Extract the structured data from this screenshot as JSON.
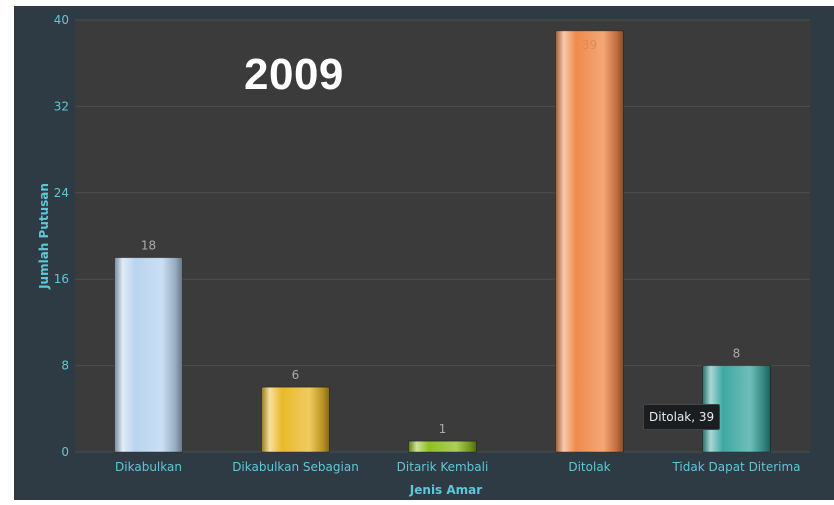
{
  "page_title": "2009",
  "tooltip": {
    "label": "Ditolak",
    "value": "39",
    "text": "Ditolak, 39"
  },
  "colors": {
    "panel_bg": "#2e3a44",
    "plot_bg": "#3b3b3b",
    "axis_text": "#5ec8d8",
    "bars": [
      "#b9d4ef",
      "#e9b92b",
      "#8fbf23",
      "#f08a4b",
      "#3fa8a2"
    ]
  },
  "chart_data": {
    "type": "bar",
    "title": "2009",
    "xlabel": "Jenis Amar",
    "ylabel": "Jumlah Putusan",
    "categories": [
      "Dikabulkan",
      "Dikabulkan Sebagian",
      "Ditarik Kembali",
      "Ditolak",
      "Tidak Dapat Diterima"
    ],
    "values": [
      18,
      6,
      1,
      39,
      8
    ],
    "ylim": [
      0,
      40
    ],
    "yticks": [
      0,
      8,
      16,
      24,
      32,
      40
    ],
    "grid": true,
    "legend": "none",
    "data_labels": true
  }
}
